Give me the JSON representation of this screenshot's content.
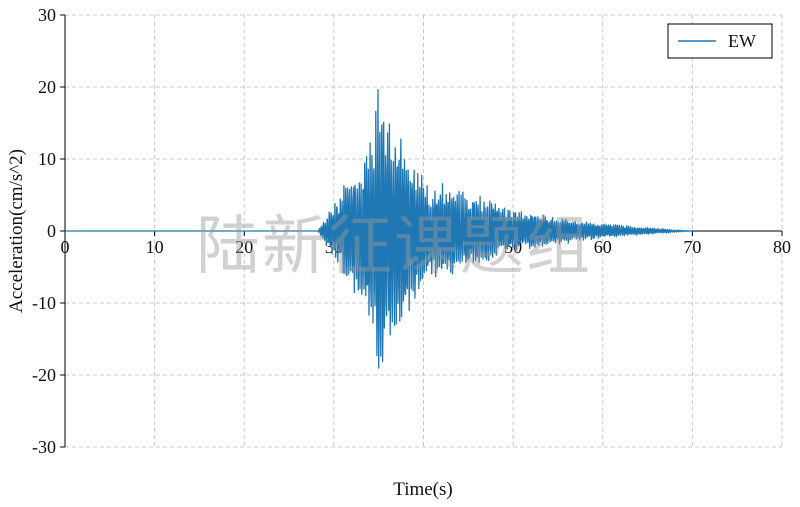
{
  "chart_data": {
    "type": "line",
    "title": "",
    "xlabel": "Time(s)",
    "ylabel": "Acceleration(cm/s^2)",
    "xlim": [
      0,
      80
    ],
    "ylim": [
      -30,
      30
    ],
    "x_ticks": [
      0,
      10,
      20,
      30,
      40,
      50,
      60,
      70,
      80
    ],
    "y_ticks": [
      -30,
      -20,
      -10,
      0,
      10,
      20,
      30
    ],
    "grid": true,
    "legend_position": "top-right",
    "series": [
      {
        "name": "EW",
        "color": "#1f77b4",
        "summary_points": [
          {
            "x": 0,
            "y": 0
          },
          {
            "x": 28.2,
            "y": 0
          },
          {
            "x": 34.4,
            "y": 13.5
          },
          {
            "x": 34.6,
            "y": -15.8
          },
          {
            "x": 35.0,
            "y": 22.2
          },
          {
            "x": 35.2,
            "y": -20.8
          },
          {
            "x": 36.0,
            "y": 18.0
          },
          {
            "x": 36.4,
            "y": -17.0
          },
          {
            "x": 39.0,
            "y": 10.2
          },
          {
            "x": 40.6,
            "y": -6.5
          },
          {
            "x": 42.2,
            "y": 7.0
          },
          {
            "x": 50.0,
            "y": 3.0
          },
          {
            "x": 55.0,
            "y": 2.0
          },
          {
            "x": 60.0,
            "y": 1.0
          },
          {
            "x": 70.0,
            "y": 0
          }
        ]
      }
    ]
  },
  "watermark": "陆新征课题组"
}
